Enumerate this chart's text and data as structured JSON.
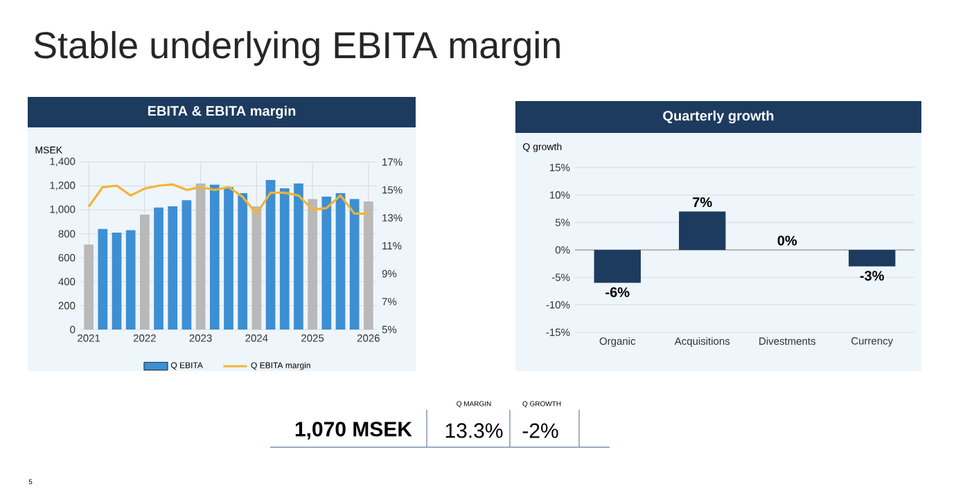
{
  "chart_data": [
    {
      "type": "other",
      "title": "Stable underlying EBITA margin",
      "annotations": [
        "1,070 MSEK",
        "Q MARGIN",
        "13.3%",
        "Q GROWTH",
        "-2%",
        "5"
      ]
    },
    {
      "type": "bar",
      "title": "EBITA & EBITA margin",
      "ylabel": "MSEK",
      "categories": [
        "2021",
        null,
        null,
        null,
        "2022",
        null,
        null,
        null,
        "2023",
        null,
        null,
        null,
        "2024",
        null,
        null,
        null,
        "2025",
        null,
        null,
        null,
        "2026"
      ],
      "series": [
        {
          "name": "Q EBITA",
          "type": "bar",
          "color": "#3d8fd3",
          "colors": [
            "#b9b9b9",
            "#3d8fd3",
            "#3d8fd3",
            "#3d8fd3",
            "#b9b9b9",
            "#3d8fd3",
            "#3d8fd3",
            "#3d8fd3",
            "#b9b9b9",
            "#3d8fd3",
            "#3d8fd3",
            "#3d8fd3",
            "#b9b9b9",
            "#3d8fd3",
            "#3d8fd3",
            "#3d8fd3",
            "#b9b9b9",
            "#3d8fd3",
            "#3d8fd3",
            "#3d8fd3",
            "#b9b9b9"
          ],
          "values": [
            710,
            840,
            810,
            830,
            960,
            1020,
            1030,
            1080,
            1220,
            1210,
            1190,
            1140,
            1030,
            1250,
            1180,
            1220,
            1090,
            1110,
            1140,
            1090,
            1070
          ]
        },
        {
          "name": "Q EBITA margin",
          "type": "line",
          "axis": "y2",
          "color": "#f2b434",
          "values": [
            13.8,
            15.2,
            15.3,
            14.6,
            15.1,
            15.3,
            15.4,
            15.0,
            15.2,
            15.0,
            15.2,
            14.5,
            13.3,
            14.8,
            14.8,
            14.6,
            13.6,
            13.7,
            14.6,
            13.3,
            13.3
          ]
        }
      ],
      "ylim": [
        0,
        1400
      ],
      "yticks": [
        0,
        200,
        400,
        600,
        800,
        {
          "value": 1000,
          "label": "1,000"
        },
        {
          "value": 1200,
          "label": "1,200"
        },
        {
          "value": 1400,
          "label": "1,400"
        }
      ],
      "y2lim": [
        5,
        17
      ],
      "y2ticks": [
        {
          "value": 5,
          "label": "5%"
        },
        {
          "value": 7,
          "label": "7%"
        },
        {
          "value": 9,
          "label": "9%"
        },
        {
          "value": 11,
          "label": "11%"
        },
        {
          "value": 13,
          "label": "13%"
        },
        {
          "value": 15,
          "label": "15%"
        },
        {
          "value": 17,
          "label": "17%"
        }
      ],
      "grid": true,
      "legend": "bottom",
      "marker": "none",
      "line_style": "solid"
    },
    {
      "type": "bar",
      "title": "Quarterly growth",
      "ylabel": "Q growth",
      "categories": [
        "Organic",
        "Acquisitions",
        "Divestments",
        "Currency"
      ],
      "values": [
        -6,
        7,
        0,
        -3
      ],
      "color": "#1c3b5e",
      "value_labels": [
        "-6%",
        "7%",
        "0%",
        "-3%"
      ],
      "ylim": [
        -15,
        15
      ],
      "yticks": [
        {
          "value": -15,
          "label": "-15%"
        },
        {
          "value": -10,
          "label": "-10%"
        },
        {
          "value": -5,
          "label": "-5%"
        },
        {
          "value": 0,
          "label": "0%"
        },
        {
          "value": 5,
          "label": "5%"
        },
        {
          "value": 10,
          "label": "10%"
        },
        {
          "value": 15,
          "label": "15%"
        }
      ],
      "grid": "y"
    }
  ]
}
